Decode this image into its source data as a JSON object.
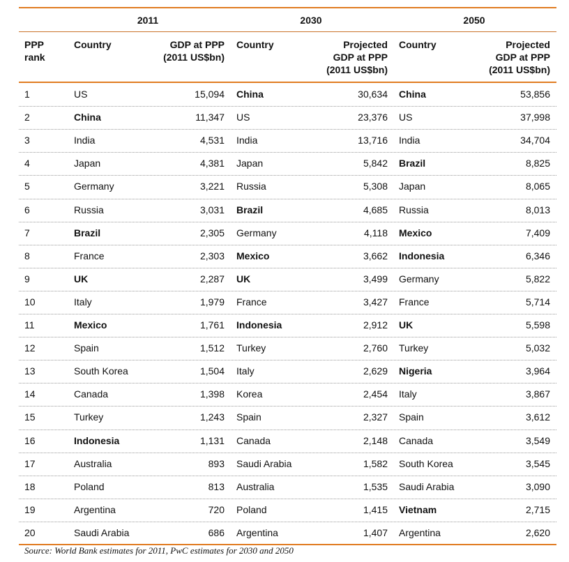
{
  "table": {
    "years": [
      "2011",
      "2030",
      "2050"
    ],
    "headers": [
      [
        "PPP",
        "rank"
      ],
      [
        "Country"
      ],
      [
        "GDP at PPP",
        "(2011 US$bn)"
      ],
      [
        "Country"
      ],
      [
        "Projected",
        "GDP at PPP",
        "(2011 US$bn)"
      ],
      [
        "Country"
      ],
      [
        "Projected",
        "GDP at PPP",
        "(2011 US$bn)"
      ]
    ],
    "rows": [
      [
        "1",
        "US",
        "15,094",
        {
          "text": "China",
          "bold": true
        },
        "30,634",
        {
          "text": "China",
          "bold": true
        },
        "53,856"
      ],
      [
        "2",
        {
          "text": "China",
          "bold": true
        },
        "11,347",
        "US",
        "23,376",
        "US",
        "37,998"
      ],
      [
        "3",
        "India",
        "4,531",
        "India",
        "13,716",
        "India",
        "34,704"
      ],
      [
        "4",
        "Japan",
        "4,381",
        "Japan",
        "5,842",
        {
          "text": "Brazil",
          "bold": true
        },
        "8,825"
      ],
      [
        "5",
        "Germany",
        "3,221",
        "Russia",
        "5,308",
        "Japan",
        "8,065"
      ],
      [
        "6",
        "Russia",
        "3,031",
        {
          "text": "Brazil",
          "bold": true
        },
        "4,685",
        "Russia",
        "8,013"
      ],
      [
        "7",
        {
          "text": "Brazil",
          "bold": true
        },
        "2,305",
        "Germany",
        "4,118",
        {
          "text": "Mexico",
          "bold": true
        },
        "7,409"
      ],
      [
        "8",
        "France",
        "2,303",
        {
          "text": "Mexico",
          "bold": true
        },
        "3,662",
        {
          "text": "Indonesia",
          "bold": true
        },
        "6,346"
      ],
      [
        "9",
        {
          "text": "UK",
          "bold": true
        },
        "2,287",
        {
          "text": "UK",
          "bold": true
        },
        "3,499",
        "Germany",
        "5,822"
      ],
      [
        "10",
        "Italy",
        "1,979",
        "France",
        "3,427",
        "France",
        "5,714"
      ],
      [
        "11",
        {
          "text": "Mexico",
          "bold": true
        },
        "1,761",
        {
          "text": "Indonesia",
          "bold": true
        },
        "2,912",
        {
          "text": "UK",
          "bold": true
        },
        "5,598"
      ],
      [
        "12",
        "Spain",
        "1,512",
        "Turkey",
        "2,760",
        "Turkey",
        "5,032"
      ],
      [
        "13",
        "South Korea",
        "1,504",
        "Italy",
        "2,629",
        {
          "text": "Nigeria",
          "bold": true
        },
        "3,964"
      ],
      [
        "14",
        "Canada",
        "1,398",
        "Korea",
        "2,454",
        "Italy",
        "3,867"
      ],
      [
        "15",
        "Turkey",
        "1,243",
        "Spain",
        "2,327",
        "Spain",
        "3,612"
      ],
      [
        "16",
        {
          "text": "Indonesia",
          "bold": true
        },
        "1,131",
        "Canada",
        "2,148",
        "Canada",
        "3,549"
      ],
      [
        "17",
        "Australia",
        "893",
        "Saudi Arabia",
        "1,582",
        "South Korea",
        "3,545"
      ],
      [
        "18",
        "Poland",
        "813",
        "Australia",
        "1,535",
        "Saudi Arabia",
        "3,090"
      ],
      [
        "19",
        "Argentina",
        "720",
        "Poland",
        "1,415",
        {
          "text": "Vietnam",
          "bold": true
        },
        "2,715"
      ],
      [
        "20",
        "Saudi Arabia",
        "686",
        "Argentina",
        "1,407",
        "Argentina",
        "2,620"
      ]
    ],
    "source": "Source: World Bank estimates for 2011, PwC estimates for 2030 and 2050"
  }
}
